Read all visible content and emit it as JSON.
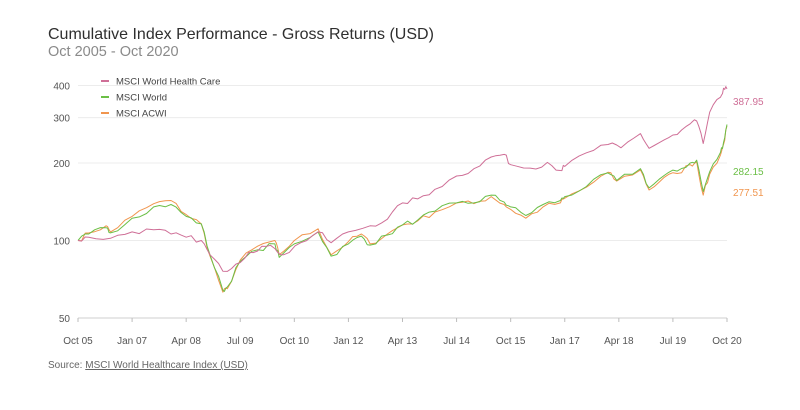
{
  "chart_data": {
    "type": "line",
    "title": "Cumulative Index Performance - Gross Returns (USD)",
    "subtitle": "Oct 2005 - Oct 2020",
    "xlabel": "",
    "ylabel": "",
    "y_scale": "log",
    "ylim": [
      50,
      420
    ],
    "x_range": [
      2005.75,
      2020.75
    ],
    "y_ticks": [
      50,
      100,
      200,
      300,
      400
    ],
    "x_ticks": [
      {
        "label": "Oct 05",
        "x": 2005.75
      },
      {
        "label": "Jan 07",
        "x": 2007.0
      },
      {
        "label": "Apr 08",
        "x": 2008.25
      },
      {
        "label": "Jul 09",
        "x": 2009.5
      },
      {
        "label": "Oct 10",
        "x": 2010.75
      },
      {
        "label": "Jan 12",
        "x": 2012.0
      },
      {
        "label": "Apr 13",
        "x": 2013.25
      },
      {
        "label": "Jul 14",
        "x": 2014.5
      },
      {
        "label": "Oct 15",
        "x": 2015.75
      },
      {
        "label": "Jan 17",
        "x": 2017.0
      },
      {
        "label": "Apr 18",
        "x": 2018.25
      },
      {
        "label": "Jul 19",
        "x": 2019.5
      },
      {
        "label": "Oct 20",
        "x": 2020.75
      }
    ],
    "legend_position": "top-left",
    "series": [
      {
        "name": "MSCI World Health Care",
        "color": "#cf6f97",
        "end_label": "387.95",
        "points": [
          [
            2005.75,
            100
          ],
          [
            2006.0,
            103
          ],
          [
            2006.5,
            102
          ],
          [
            2007.0,
            108
          ],
          [
            2007.5,
            110
          ],
          [
            2007.9,
            106
          ],
          [
            2008.25,
            103
          ],
          [
            2008.6,
            100
          ],
          [
            2008.8,
            88
          ],
          [
            2009.1,
            76
          ],
          [
            2009.4,
            81
          ],
          [
            2009.7,
            90
          ],
          [
            2010.0,
            95
          ],
          [
            2010.3,
            93
          ],
          [
            2010.5,
            88
          ],
          [
            2010.9,
            98
          ],
          [
            2011.3,
            108
          ],
          [
            2011.6,
            98
          ],
          [
            2012.0,
            108
          ],
          [
            2012.5,
            114
          ],
          [
            2012.9,
            121
          ],
          [
            2013.25,
            140
          ],
          [
            2013.6,
            145
          ],
          [
            2014.0,
            158
          ],
          [
            2014.5,
            178
          ],
          [
            2014.9,
            190
          ],
          [
            2015.3,
            211
          ],
          [
            2015.6,
            216
          ],
          [
            2015.75,
            197
          ],
          [
            2016.2,
            191
          ],
          [
            2016.6,
            201
          ],
          [
            2016.9,
            187
          ],
          [
            2017.0,
            194
          ],
          [
            2017.5,
            219
          ],
          [
            2018.0,
            236
          ],
          [
            2018.3,
            229
          ],
          [
            2018.75,
            260
          ],
          [
            2018.95,
            228
          ],
          [
            2019.3,
            246
          ],
          [
            2019.6,
            258
          ],
          [
            2019.9,
            284
          ],
          [
            2020.05,
            291
          ],
          [
            2020.2,
            238
          ],
          [
            2020.35,
            315
          ],
          [
            2020.6,
            360
          ],
          [
            2020.67,
            390
          ],
          [
            2020.75,
            388
          ]
        ]
      },
      {
        "name": "MSCI World",
        "color": "#6bbf46",
        "end_label": "282.15",
        "points": [
          [
            2005.75,
            100
          ],
          [
            2006.0,
            106
          ],
          [
            2006.4,
            112
          ],
          [
            2006.5,
            107
          ],
          [
            2007.0,
            122
          ],
          [
            2007.5,
            135
          ],
          [
            2007.9,
            138
          ],
          [
            2008.25,
            124
          ],
          [
            2008.6,
            116
          ],
          [
            2008.8,
            88
          ],
          [
            2009.1,
            64
          ],
          [
            2009.2,
            66
          ],
          [
            2009.5,
            83
          ],
          [
            2009.9,
            92
          ],
          [
            2010.3,
            97
          ],
          [
            2010.4,
            86
          ],
          [
            2010.75,
            97
          ],
          [
            2011.3,
            108
          ],
          [
            2011.6,
            87
          ],
          [
            2012.0,
            97
          ],
          [
            2012.3,
            104
          ],
          [
            2012.5,
            96
          ],
          [
            2012.9,
            105
          ],
          [
            2013.25,
            115
          ],
          [
            2013.6,
            120
          ],
          [
            2014.0,
            130
          ],
          [
            2014.5,
            140
          ],
          [
            2014.9,
            140
          ],
          [
            2015.3,
            150
          ],
          [
            2015.6,
            141
          ],
          [
            2015.75,
            135
          ],
          [
            2016.1,
            125
          ],
          [
            2016.5,
            138
          ],
          [
            2016.9,
            143
          ],
          [
            2017.0,
            148
          ],
          [
            2017.5,
            162
          ],
          [
            2018.0,
            183
          ],
          [
            2018.2,
            171
          ],
          [
            2018.75,
            190
          ],
          [
            2018.95,
            160
          ],
          [
            2019.3,
            179
          ],
          [
            2019.6,
            186
          ],
          [
            2019.9,
            200
          ],
          [
            2020.05,
            205
          ],
          [
            2020.2,
            155
          ],
          [
            2020.35,
            185
          ],
          [
            2020.6,
            220
          ],
          [
            2020.67,
            240
          ],
          [
            2020.75,
            282
          ]
        ]
      },
      {
        "name": "MSCI ACWI",
        "color": "#f0954e",
        "end_label": "277.51",
        "points": [
          [
            2005.75,
            100
          ],
          [
            2006.0,
            107
          ],
          [
            2006.4,
            114
          ],
          [
            2006.5,
            108
          ],
          [
            2007.0,
            124
          ],
          [
            2007.5,
            139
          ],
          [
            2007.9,
            143
          ],
          [
            2008.25,
            126
          ],
          [
            2008.6,
            116
          ],
          [
            2008.8,
            87
          ],
          [
            2009.1,
            63
          ],
          [
            2009.2,
            65
          ],
          [
            2009.5,
            84
          ],
          [
            2009.9,
            95
          ],
          [
            2010.3,
            100
          ],
          [
            2010.4,
            88
          ],
          [
            2010.75,
            100
          ],
          [
            2011.3,
            111
          ],
          [
            2011.6,
            88
          ],
          [
            2012.0,
            99
          ],
          [
            2012.3,
            106
          ],
          [
            2012.5,
            97
          ],
          [
            2012.9,
            106
          ],
          [
            2013.25,
            115
          ],
          [
            2013.6,
            119
          ],
          [
            2014.0,
            129
          ],
          [
            2014.5,
            140
          ],
          [
            2014.9,
            139
          ],
          [
            2015.3,
            148
          ],
          [
            2015.6,
            138
          ],
          [
            2015.75,
            132
          ],
          [
            2016.1,
            122
          ],
          [
            2016.5,
            135
          ],
          [
            2016.9,
            140
          ],
          [
            2017.0,
            146
          ],
          [
            2017.5,
            161
          ],
          [
            2018.0,
            184
          ],
          [
            2018.2,
            170
          ],
          [
            2018.75,
            188
          ],
          [
            2018.95,
            157
          ],
          [
            2019.3,
            176
          ],
          [
            2019.6,
            182
          ],
          [
            2019.9,
            197
          ],
          [
            2020.05,
            202
          ],
          [
            2020.2,
            150
          ],
          [
            2020.35,
            181
          ],
          [
            2020.6,
            215
          ],
          [
            2020.67,
            236
          ],
          [
            2020.75,
            278
          ]
        ]
      }
    ]
  },
  "source": {
    "prefix": "Source: ",
    "link_text": "MSCI World Healthcare Index (USD)"
  }
}
